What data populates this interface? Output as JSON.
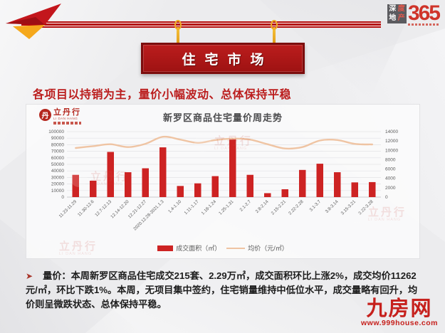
{
  "header": {
    "logo": {
      "chars": [
        "深",
        "度",
        "地",
        "产"
      ],
      "number": "365"
    },
    "sign_title": "住宅市场"
  },
  "headline": "各项目以持销为主，量价小幅波动、总体保持平稳",
  "panel_logo": {
    "circle_char": "丹",
    "name": "立丹行",
    "sub": "LI DAN HANG"
  },
  "watermark": {
    "circle_char": "丹",
    "name": "立丹行",
    "sub": "LI DAN HANG"
  },
  "chart_data": {
    "type": "bar+line",
    "title": "新罗区商品住宅量价周走势",
    "categories": [
      "11.23-11.29",
      "11.30-12.6",
      "12.7-12.13",
      "12.14-12.20",
      "12.21-12.27",
      "2020.12.28-2021.1.3",
      "1.4-1.10",
      "1.11-1.17",
      "1.18-1.24",
      "1.25-1.31",
      "2.1-2.7",
      "2.8-2.14",
      "2.15-2.21",
      "2.22-2.28",
      "3.1-3.7",
      "3.8-3.14",
      "3.15-3.21",
      "3.22-3.28"
    ],
    "series": [
      {
        "name": "成交面积（㎡）",
        "type": "bar",
        "axis": "left",
        "color": "#cd2323",
        "values": [
          34000,
          25000,
          69000,
          38000,
          44000,
          76000,
          17000,
          21000,
          32000,
          89000,
          34000,
          6000,
          12000,
          41500,
          51000,
          38000,
          22450,
          22900
        ]
      },
      {
        "name": "均价（元/㎡）",
        "type": "line",
        "axis": "right",
        "color": "#efc4a3",
        "values": [
          10500,
          10900,
          11300,
          10700,
          11400,
          12900,
          12300,
          11600,
          12200,
          12500,
          12300,
          11300,
          10400,
          10700,
          12100,
          12200,
          11376,
          11262
        ]
      }
    ],
    "left_axis": {
      "min": 0,
      "max": 100000,
      "step": 10000
    },
    "right_axis": {
      "min": 0,
      "max": 14000,
      "step": 2000
    },
    "grid": true,
    "legend_position": "bottom"
  },
  "commentary": {
    "bullet": "➤",
    "label": "量价：",
    "text": "本周新罗区商品住宅成交215套、2.29万㎡，成交面积环比上涨2%，成交均价11262元/㎡，环比下跌1%。本周，无项目集中签约，住宅销量维持中低位水平，成交量略有回升，均价则呈微跌状态、总体保持平稳。"
  },
  "footer_logo": {
    "name": "九房网",
    "url": "www.999house.com"
  }
}
